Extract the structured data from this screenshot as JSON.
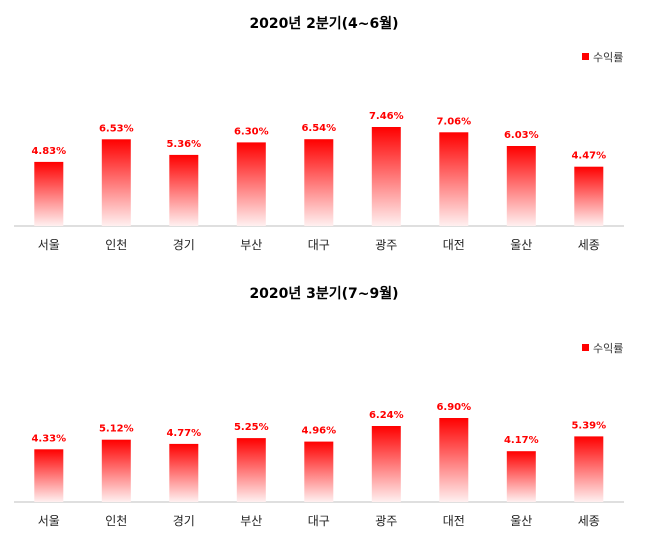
{
  "colors": {
    "bar_top": "#ff0000",
    "bar_bottom": "#fff0f0",
    "value_label": "#ff0000",
    "axis": "#bfbfbf"
  },
  "chart_data": [
    {
      "type": "bar",
      "title": "2020년  2분기(4~6월)",
      "legend": {
        "position": "top-right",
        "label": "수익률"
      },
      "categories": [
        "서울",
        "인천",
        "경기",
        "부산",
        "대구",
        "광주",
        "대전",
        "울산",
        "세종"
      ],
      "series": [
        {
          "name": "수익률",
          "values": [
            4.83,
            6.53,
            5.36,
            6.3,
            6.54,
            7.46,
            7.06,
            6.03,
            4.47
          ]
        }
      ],
      "value_labels": [
        "4.83%",
        "6.53%",
        "5.36%",
        "6.30%",
        "6.54%",
        "7.46%",
        "7.06%",
        "6.03%",
        "4.47%"
      ],
      "ylim": [
        0,
        8
      ],
      "grid": false
    },
    {
      "type": "bar",
      "title": "2020년  3분기(7~9월)",
      "legend": {
        "position": "top-right",
        "label": "수익률"
      },
      "categories": [
        "서울",
        "인천",
        "경기",
        "부산",
        "대구",
        "광주",
        "대전",
        "울산",
        "세종"
      ],
      "series": [
        {
          "name": "수익률",
          "values": [
            4.33,
            5.12,
            4.77,
            5.25,
            4.96,
            6.24,
            6.9,
            4.17,
            5.39
          ]
        }
      ],
      "value_labels": [
        "4.33%",
        "5.12%",
        "4.77%",
        "5.25%",
        "4.96%",
        "6.24%",
        "6.90%",
        "4.17%",
        "5.39%"
      ],
      "ylim": [
        0,
        8
      ],
      "grid": false
    }
  ]
}
